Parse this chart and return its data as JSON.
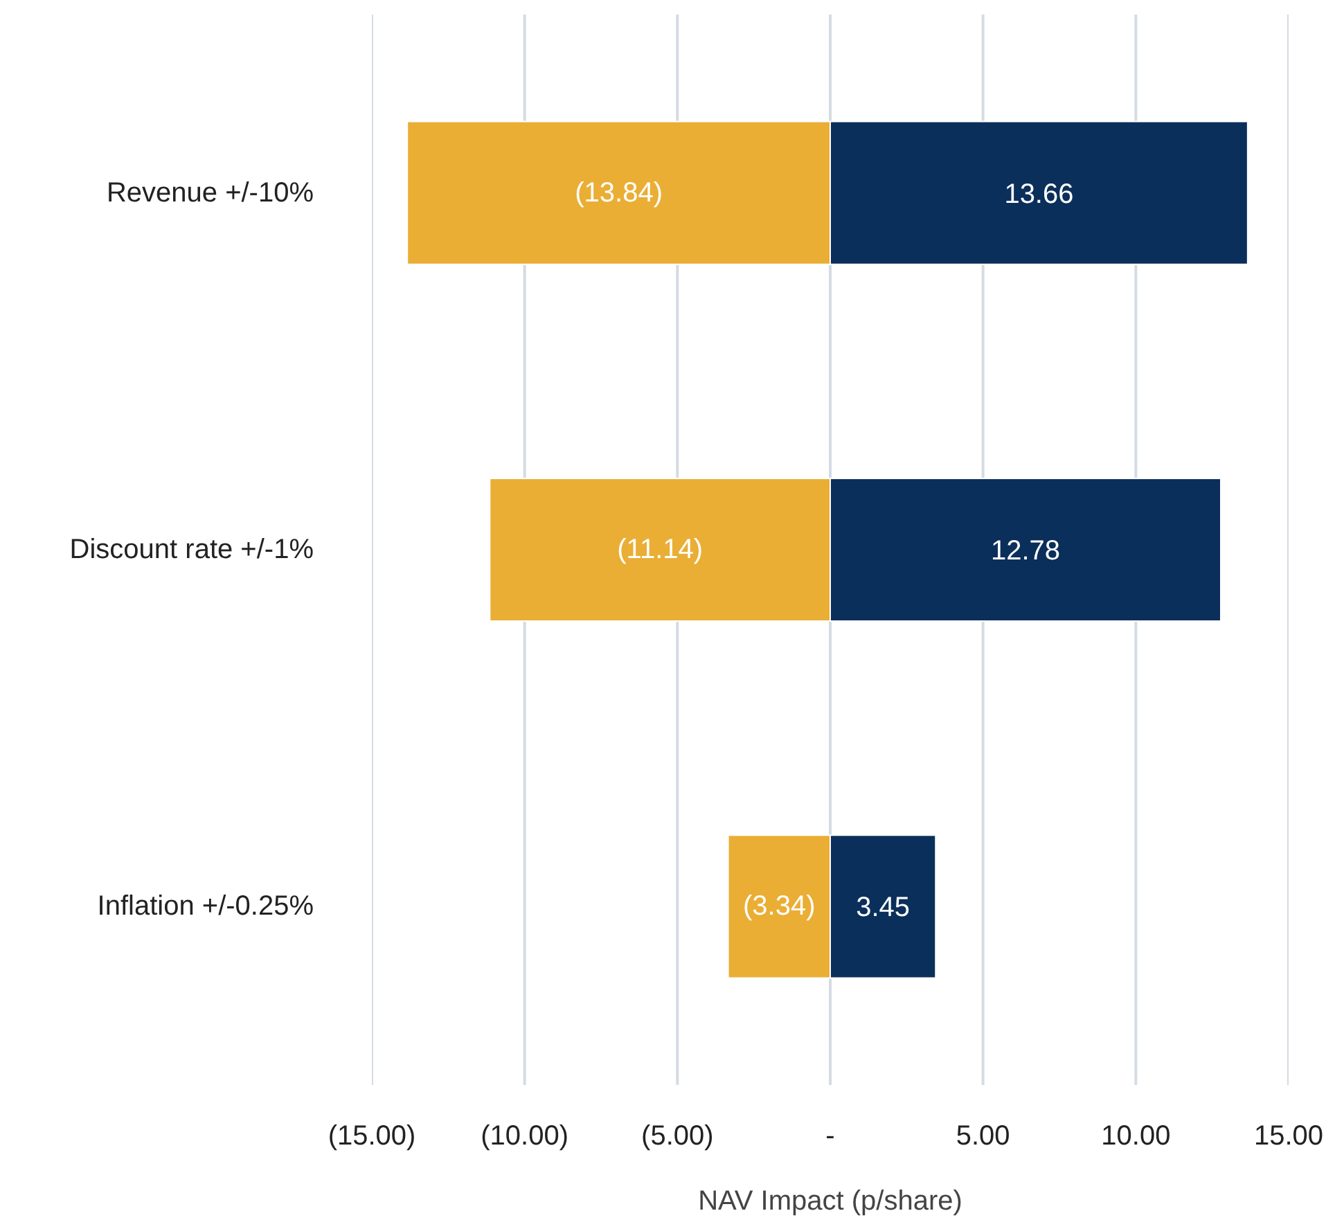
{
  "chart_data": {
    "type": "bar",
    "orientation": "horizontal",
    "stacked": true,
    "categories": [
      "Revenue +/-10%",
      "Discount rate +/-1%",
      "Inflation +/-0.25%"
    ],
    "series": [
      {
        "color": "#eaae35",
        "values": [
          -13.84,
          -11.14,
          -3.34
        ],
        "value_labels": [
          "(13.84)",
          "(11.14)",
          "(3.34)"
        ]
      },
      {
        "color": "#0b2f5b",
        "values": [
          13.66,
          12.78,
          3.45
        ],
        "value_labels": [
          "13.66",
          "12.78",
          "3.45"
        ]
      }
    ],
    "xlim": [
      -15,
      15
    ],
    "xticks": [
      {
        "value": -15,
        "label": "(15.00)"
      },
      {
        "value": -10,
        "label": "(10.00)"
      },
      {
        "value": -5,
        "label": "(5.00)"
      },
      {
        "value": 0,
        "label": "-"
      },
      {
        "value": 5,
        "label": "5.00"
      },
      {
        "value": 10,
        "label": "10.00"
      },
      {
        "value": 15,
        "label": "15.00"
      }
    ],
    "xlabel": "NAV Impact (p/share)",
    "grid": "x",
    "legend": false
  }
}
